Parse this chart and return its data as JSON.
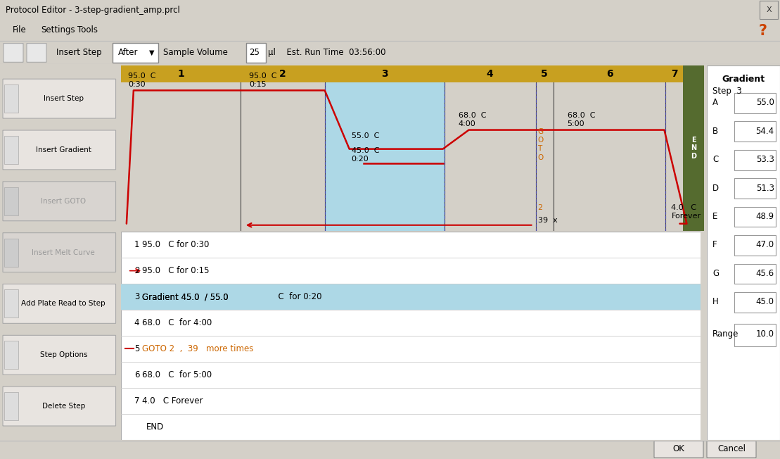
{
  "title": "Protocol Editor - 3-step-gradient_amp.prcl",
  "bg_color": "#d4d0c8",
  "chart_bg": "#ffffff",
  "header_color": "#c8a020",
  "step3_highlight": "#add8e6",
  "end_bar_color": "#556b2f",
  "line_color": "#cc0000",
  "col_divider_color": "#333333",
  "dashed_color": "#4444bb",
  "gradient_panel": {
    "title": "Gradient",
    "step": "Step  3",
    "rows": [
      {
        "label": "A",
        "value": "55.0"
      },
      {
        "label": "B",
        "value": "54.4"
      },
      {
        "label": "C",
        "value": "53.3"
      },
      {
        "label": "D",
        "value": "51.3"
      },
      {
        "label": "E",
        "value": "48.9"
      },
      {
        "label": "F",
        "value": "47.0"
      },
      {
        "label": "G",
        "value": "45.6"
      },
      {
        "label": "H",
        "value": "45.0"
      }
    ],
    "range_label": "Range",
    "range_value": "10.0"
  },
  "buttons_left": [
    "Insert Step",
    "Insert Gradient",
    "Insert GOTO",
    "Insert Melt Curve",
    "Add Plate Read to Step",
    "Step Options",
    "Delete Step"
  ],
  "btn_enabled": [
    true,
    true,
    false,
    false,
    true,
    true,
    true
  ]
}
